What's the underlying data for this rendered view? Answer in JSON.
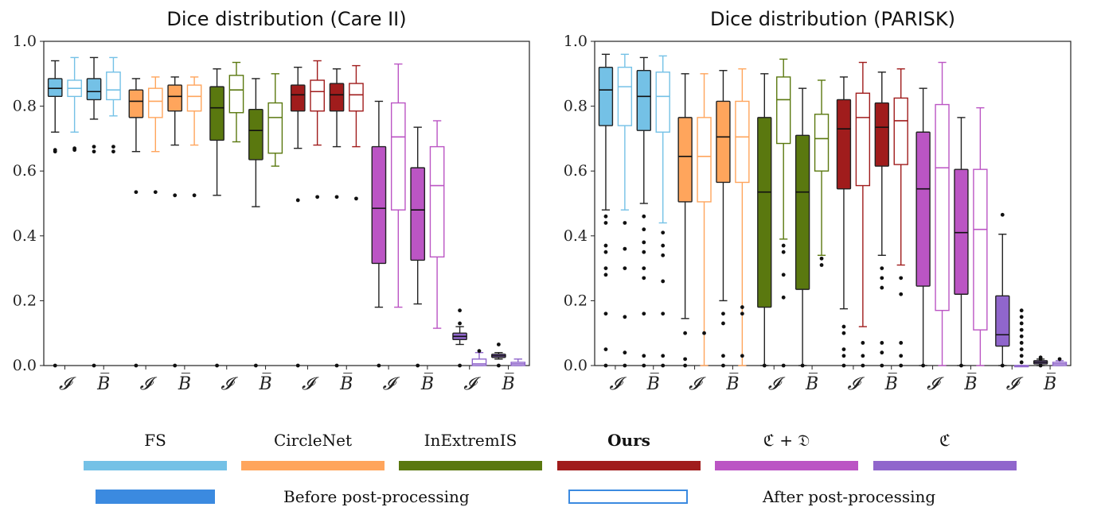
{
  "chart_data": [
    {
      "type": "box",
      "title": "Dice distribution (Care II)",
      "ylim": [
        0,
        1
      ],
      "yticks": [
        "0.0",
        "0.2",
        "0.4",
        "0.6",
        "0.8",
        "1.0"
      ],
      "group_tick_labels": [
        "𝓘",
        "B̅"
      ],
      "groups": [
        {
          "method": "FS",
          "boxes": [
            {
              "tick": "𝓘",
              "post": false,
              "q1": 0.83,
              "median": 0.855,
              "q3": 0.885,
              "whislo": 0.72,
              "whishi": 0.94,
              "fliers": [
                0.66,
                0.665,
                0.0
              ]
            },
            {
              "tick": "𝓘",
              "post": true,
              "q1": 0.83,
              "median": 0.855,
              "q3": 0.88,
              "whislo": 0.72,
              "whishi": 0.95,
              "fliers": [
                0.665,
                0.67
              ]
            },
            {
              "tick": "B̅",
              "post": false,
              "q1": 0.82,
              "median": 0.845,
              "q3": 0.885,
              "whislo": 0.76,
              "whishi": 0.95,
              "fliers": [
                0.675,
                0.66,
                0.0
              ]
            },
            {
              "tick": "B̅",
              "post": true,
              "q1": 0.82,
              "median": 0.85,
              "q3": 0.905,
              "whislo": 0.77,
              "whishi": 0.95,
              "fliers": [
                0.675,
                0.66
              ]
            }
          ]
        },
        {
          "method": "CircleNet",
          "boxes": [
            {
              "tick": "𝓘",
              "post": false,
              "q1": 0.765,
              "median": 0.815,
              "q3": 0.85,
              "whislo": 0.66,
              "whishi": 0.885,
              "fliers": [
                0.535,
                0.0
              ]
            },
            {
              "tick": "𝓘",
              "post": true,
              "q1": 0.765,
              "median": 0.815,
              "q3": 0.855,
              "whislo": 0.66,
              "whishi": 0.89,
              "fliers": [
                0.535
              ]
            },
            {
              "tick": "B̅",
              "post": false,
              "q1": 0.785,
              "median": 0.83,
              "q3": 0.865,
              "whislo": 0.68,
              "whishi": 0.89,
              "fliers": [
                0.525,
                0.0
              ]
            },
            {
              "tick": "B̅",
              "post": true,
              "q1": 0.785,
              "median": 0.83,
              "q3": 0.865,
              "whislo": 0.68,
              "whishi": 0.89,
              "fliers": [
                0.525
              ]
            }
          ]
        },
        {
          "method": "InExtremIS",
          "boxes": [
            {
              "tick": "𝓘",
              "post": false,
              "q1": 0.695,
              "median": 0.795,
              "q3": 0.86,
              "whislo": 0.525,
              "whishi": 0.915,
              "fliers": [
                0.0
              ]
            },
            {
              "tick": "𝓘",
              "post": true,
              "q1": 0.78,
              "median": 0.85,
              "q3": 0.895,
              "whislo": 0.69,
              "whishi": 0.935,
              "fliers": []
            },
            {
              "tick": "B̅",
              "post": false,
              "q1": 0.635,
              "median": 0.725,
              "q3": 0.79,
              "whislo": 0.49,
              "whishi": 0.885,
              "fliers": [
                0.0
              ]
            },
            {
              "tick": "B̅",
              "post": true,
              "q1": 0.655,
              "median": 0.765,
              "q3": 0.81,
              "whislo": 0.615,
              "whishi": 0.9,
              "fliers": []
            }
          ]
        },
        {
          "method": "Ours",
          "boxes": [
            {
              "tick": "𝓘",
              "post": false,
              "q1": 0.785,
              "median": 0.835,
              "q3": 0.865,
              "whislo": 0.67,
              "whishi": 0.92,
              "fliers": [
                0.51,
                0.0
              ]
            },
            {
              "tick": "𝓘",
              "post": true,
              "q1": 0.785,
              "median": 0.845,
              "q3": 0.88,
              "whislo": 0.68,
              "whishi": 0.94,
              "fliers": [
                0.52
              ]
            },
            {
              "tick": "B̅",
              "post": false,
              "q1": 0.785,
              "median": 0.835,
              "q3": 0.87,
              "whislo": 0.675,
              "whishi": 0.915,
              "fliers": [
                0.52,
                0.0
              ]
            },
            {
              "tick": "B̅",
              "post": true,
              "q1": 0.785,
              "median": 0.835,
              "q3": 0.87,
              "whislo": 0.675,
              "whishi": 0.925,
              "fliers": [
                0.515
              ]
            }
          ]
        },
        {
          "method": "ℭ + 𝔇",
          "boxes": [
            {
              "tick": "𝓘",
              "post": false,
              "q1": 0.315,
              "median": 0.485,
              "q3": 0.675,
              "whislo": 0.18,
              "whishi": 0.815,
              "fliers": [
                0.0
              ]
            },
            {
              "tick": "𝓘",
              "post": true,
              "q1": 0.48,
              "median": 0.705,
              "q3": 0.81,
              "whislo": 0.18,
              "whishi": 0.93,
              "fliers": []
            },
            {
              "tick": "B̅",
              "post": false,
              "q1": 0.325,
              "median": 0.48,
              "q3": 0.61,
              "whislo": 0.19,
              "whishi": 0.735,
              "fliers": [
                0.0
              ]
            },
            {
              "tick": "B̅",
              "post": true,
              "q1": 0.335,
              "median": 0.555,
              "q3": 0.675,
              "whislo": 0.115,
              "whishi": 0.755,
              "fliers": []
            }
          ]
        },
        {
          "method": "ℭ",
          "boxes": [
            {
              "tick": "𝓘",
              "post": false,
              "q1": 0.08,
              "median": 0.09,
              "q3": 0.1,
              "whislo": 0.065,
              "whishi": 0.12,
              "fliers": [
                0.17,
                0.13,
                0.0
              ]
            },
            {
              "tick": "𝓘",
              "post": true,
              "q1": 0.0,
              "median": 0.005,
              "q3": 0.02,
              "whislo": 0.0,
              "whishi": 0.04,
              "fliers": [
                0.045
              ]
            },
            {
              "tick": "B̅",
              "post": false,
              "q1": 0.025,
              "median": 0.03,
              "q3": 0.035,
              "whislo": 0.02,
              "whishi": 0.04,
              "fliers": [
                0.065,
                0.0
              ]
            },
            {
              "tick": "B̅",
              "post": true,
              "q1": 0.0,
              "median": 0.005,
              "q3": 0.01,
              "whislo": 0.0,
              "whishi": 0.02,
              "fliers": []
            }
          ]
        }
      ]
    },
    {
      "type": "box",
      "title": "Dice distribution (PARISK)",
      "ylim": [
        0,
        1
      ],
      "yticks": [
        "0.0",
        "0.2",
        "0.4",
        "0.6",
        "0.8",
        "1.0"
      ],
      "group_tick_labels": [
        "𝓘",
        "B̅"
      ],
      "groups": [
        {
          "method": "FS",
          "boxes": [
            {
              "tick": "𝓘",
              "post": false,
              "q1": 0.74,
              "median": 0.85,
              "q3": 0.92,
              "whislo": 0.48,
              "whishi": 0.96,
              "fliers": [
                0.46,
                0.44,
                0.37,
                0.35,
                0.3,
                0.28,
                0.16,
                0.05,
                0.0
              ]
            },
            {
              "tick": "𝓘",
              "post": true,
              "q1": 0.74,
              "median": 0.86,
              "q3": 0.92,
              "whislo": 0.48,
              "whishi": 0.96,
              "fliers": [
                0.44,
                0.36,
                0.3,
                0.15,
                0.04,
                0.0
              ]
            },
            {
              "tick": "B̅",
              "post": false,
              "q1": 0.725,
              "median": 0.83,
              "q3": 0.91,
              "whislo": 0.5,
              "whishi": 0.95,
              "fliers": [
                0.46,
                0.42,
                0.38,
                0.35,
                0.3,
                0.27,
                0.16,
                0.03,
                0.0
              ]
            },
            {
              "tick": "B̅",
              "post": true,
              "q1": 0.72,
              "median": 0.83,
              "q3": 0.905,
              "whislo": 0.44,
              "whishi": 0.955,
              "fliers": [
                0.41,
                0.37,
                0.34,
                0.26,
                0.16,
                0.03,
                0.0
              ]
            }
          ]
        },
        {
          "method": "CircleNet",
          "boxes": [
            {
              "tick": "𝓘",
              "post": false,
              "q1": 0.505,
              "median": 0.645,
              "q3": 0.765,
              "whislo": 0.145,
              "whishi": 0.9,
              "fliers": [
                0.1,
                0.02,
                0.0
              ]
            },
            {
              "tick": "𝓘",
              "post": true,
              "q1": 0.505,
              "median": 0.645,
              "q3": 0.765,
              "whislo": 0.0,
              "whishi": 0.9,
              "fliers": [
                0.1
              ]
            },
            {
              "tick": "B̅",
              "post": false,
              "q1": 0.565,
              "median": 0.705,
              "q3": 0.815,
              "whislo": 0.2,
              "whishi": 0.91,
              "fliers": [
                0.16,
                0.13,
                0.03,
                0.0
              ]
            },
            {
              "tick": "B̅",
              "post": true,
              "q1": 0.565,
              "median": 0.705,
              "q3": 0.815,
              "whislo": 0.0,
              "whishi": 0.915,
              "fliers": [
                0.18,
                0.16,
                0.03
              ]
            }
          ]
        },
        {
          "method": "InExtremIS",
          "boxes": [
            {
              "tick": "𝓘",
              "post": false,
              "q1": 0.18,
              "median": 0.535,
              "q3": 0.765,
              "whislo": 0.0,
              "whishi": 0.9,
              "fliers": [
                0.0
              ]
            },
            {
              "tick": "𝓘",
              "post": true,
              "q1": 0.685,
              "median": 0.82,
              "q3": 0.89,
              "whislo": 0.39,
              "whishi": 0.945,
              "fliers": [
                0.37,
                0.35,
                0.28,
                0.21,
                0.0
              ]
            },
            {
              "tick": "B̅",
              "post": false,
              "q1": 0.235,
              "median": 0.535,
              "q3": 0.71,
              "whislo": 0.0,
              "whishi": 0.855,
              "fliers": [
                0.0
              ]
            },
            {
              "tick": "B̅",
              "post": true,
              "q1": 0.6,
              "median": 0.7,
              "q3": 0.775,
              "whislo": 0.34,
              "whishi": 0.88,
              "fliers": [
                0.33,
                0.31
              ]
            }
          ]
        },
        {
          "method": "Ours",
          "boxes": [
            {
              "tick": "𝓘",
              "post": false,
              "q1": 0.545,
              "median": 0.73,
              "q3": 0.82,
              "whislo": 0.175,
              "whishi": 0.89,
              "fliers": [
                0.12,
                0.1,
                0.05,
                0.03,
                0.0
              ]
            },
            {
              "tick": "𝓘",
              "post": true,
              "q1": 0.555,
              "median": 0.765,
              "q3": 0.84,
              "whislo": 0.12,
              "whishi": 0.935,
              "fliers": [
                0.07,
                0.03,
                0.0
              ]
            },
            {
              "tick": "B̅",
              "post": false,
              "q1": 0.615,
              "median": 0.735,
              "q3": 0.81,
              "whislo": 0.34,
              "whishi": 0.905,
              "fliers": [
                0.3,
                0.27,
                0.24,
                0.07,
                0.04,
                0.0
              ]
            },
            {
              "tick": "B̅",
              "post": true,
              "q1": 0.62,
              "median": 0.755,
              "q3": 0.825,
              "whislo": 0.31,
              "whishi": 0.915,
              "fliers": [
                0.27,
                0.22,
                0.07,
                0.03,
                0.0
              ]
            }
          ]
        },
        {
          "method": "ℭ + 𝔇",
          "boxes": [
            {
              "tick": "𝓘",
              "post": false,
              "q1": 0.245,
              "median": 0.545,
              "q3": 0.72,
              "whislo": 0.0,
              "whishi": 0.855,
              "fliers": [
                0.0
              ]
            },
            {
              "tick": "𝓘",
              "post": true,
              "q1": 0.17,
              "median": 0.61,
              "q3": 0.805,
              "whislo": 0.0,
              "whishi": 0.935,
              "fliers": []
            },
            {
              "tick": "B̅",
              "post": false,
              "q1": 0.22,
              "median": 0.41,
              "q3": 0.605,
              "whislo": 0.0,
              "whishi": 0.765,
              "fliers": [
                0.0
              ]
            },
            {
              "tick": "B̅",
              "post": true,
              "q1": 0.11,
              "median": 0.42,
              "q3": 0.605,
              "whislo": 0.0,
              "whishi": 0.795,
              "fliers": []
            }
          ]
        },
        {
          "method": "ℭ",
          "boxes": [
            {
              "tick": "𝓘",
              "post": false,
              "q1": 0.06,
              "median": 0.095,
              "q3": 0.215,
              "whislo": 0.0,
              "whishi": 0.405,
              "fliers": [
                0.465,
                0.0
              ]
            },
            {
              "tick": "𝓘",
              "post": true,
              "q1": 0.0,
              "median": 0.0,
              "q3": 0.0,
              "whislo": 0.0,
              "whishi": 0.0,
              "fliers": [
                0.17,
                0.15,
                0.13,
                0.11,
                0.09,
                0.07,
                0.05,
                0.03,
                0.01
              ]
            },
            {
              "tick": "B̅",
              "post": false,
              "q1": 0.005,
              "median": 0.01,
              "q3": 0.015,
              "whislo": 0.0,
              "whishi": 0.02,
              "fliers": [
                0.025,
                0.02,
                0.0
              ]
            },
            {
              "tick": "B̅",
              "post": true,
              "q1": 0.0,
              "median": 0.005,
              "q3": 0.01,
              "whislo": 0.0,
              "whishi": 0.015,
              "fliers": [
                0.02
              ]
            }
          ]
        }
      ]
    }
  ],
  "legend": {
    "methods": [
      {
        "label": "FS",
        "color": "#74c1e6",
        "bold": false
      },
      {
        "label": "CircleNet",
        "color": "#ffa55c",
        "bold": false
      },
      {
        "label": "InExtremIS",
        "color": "#5a780f",
        "bold": false
      },
      {
        "label": "Ours",
        "color": "#a01c1c",
        "bold": true
      },
      {
        "label": "ℭ + 𝔇",
        "color": "#bb55c4",
        "bold": false
      },
      {
        "label": "ℭ",
        "color": "#9066cc",
        "bold": false
      }
    ],
    "before_label": "Before post-processing",
    "after_label": "After post-processing",
    "before_color": "#3b8ae0",
    "after_color": "#3b8ae0"
  }
}
